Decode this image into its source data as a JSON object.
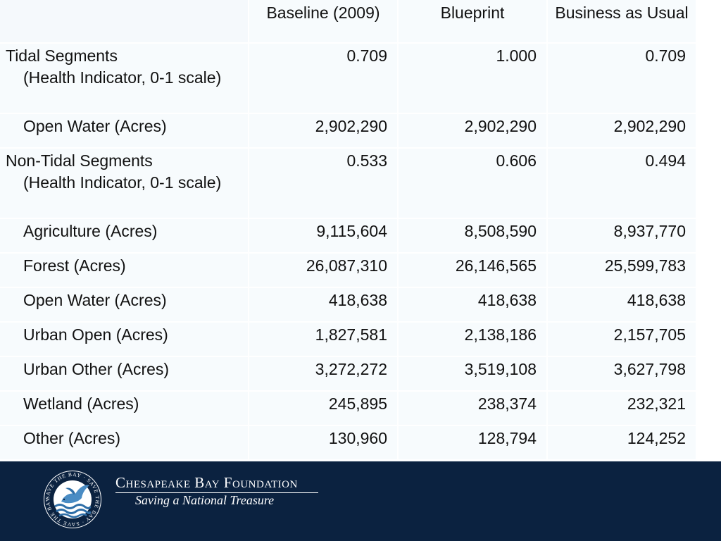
{
  "table": {
    "columns": [
      "",
      "Baseline (2009)",
      "Blueprint",
      "Business as Usual"
    ],
    "rows": [
      {
        "label": "Tidal Segments",
        "sublabel": "(Health Indicator, 0-1 scale)",
        "values": [
          "0.709",
          "1.000",
          "0.709"
        ]
      },
      {
        "label": "Open Water (Acres)",
        "values": [
          "2,902,290",
          "2,902,290",
          "2,902,290"
        ]
      },
      {
        "label": "Non-Tidal Segments",
        "sublabel": "(Health Indicator, 0-1 scale)",
        "values": [
          "0.533",
          "0.606",
          "0.494"
        ]
      },
      {
        "label": "Agriculture (Acres)",
        "values": [
          "9,115,604",
          "8,508,590",
          "8,937,770"
        ]
      },
      {
        "label": "Forest (Acres)",
        "values": [
          "26,087,310",
          "26,146,565",
          "25,599,783"
        ]
      },
      {
        "label": "Open Water (Acres)",
        "values": [
          "418,638",
          "418,638",
          "418,638"
        ]
      },
      {
        "label": "Urban Open (Acres)",
        "values": [
          "1,827,581",
          "2,138,186",
          "2,157,705"
        ]
      },
      {
        "label": "Urban Other (Acres)",
        "values": [
          "3,272,272",
          "3,519,108",
          "3,627,798"
        ]
      },
      {
        "label": "Wetland (Acres)",
        "values": [
          "245,895",
          "238,374",
          "232,321"
        ]
      },
      {
        "label": "Other (Acres)",
        "values": [
          "130,960",
          "128,794",
          "124,252"
        ]
      }
    ]
  },
  "footer": {
    "org_name": "Chesapeake Bay Foundation",
    "tagline": "Saving a National Treasure",
    "logo_ring_text": "SAVE THE BAY · SAVE THE BAY · SAVE THE BAY ·",
    "background_color": "#0b2240"
  },
  "colors": {
    "table_background": "#f7fbfd",
    "cell_divider": "#ffffff"
  }
}
